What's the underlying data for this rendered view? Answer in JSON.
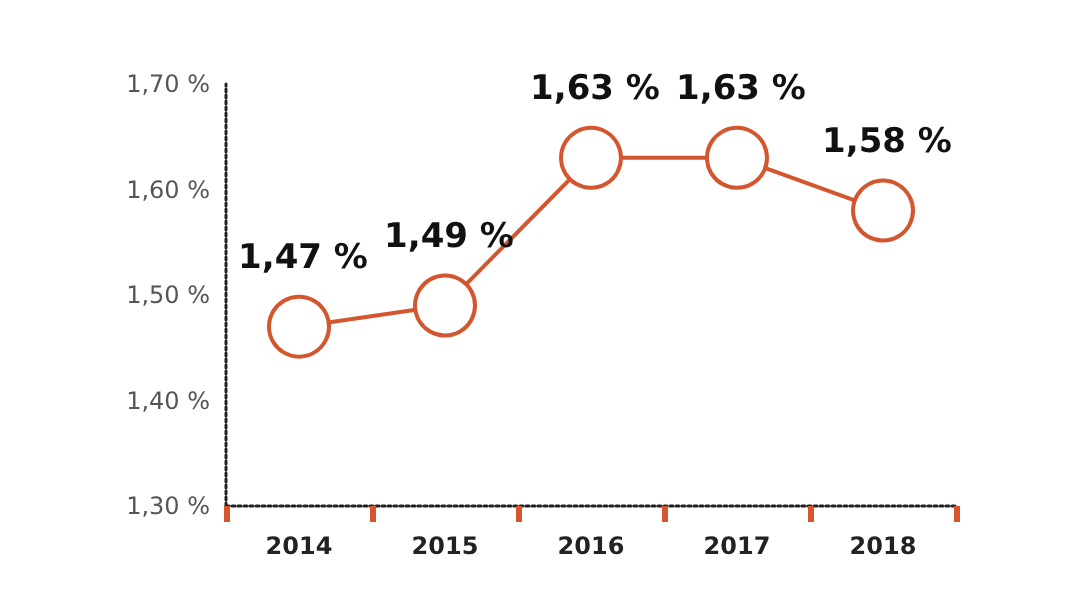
{
  "chart_data": {
    "type": "line",
    "categories": [
      "2014",
      "2015",
      "2016",
      "2017",
      "2018"
    ],
    "series": [
      {
        "color": "#d4562e",
        "values": [
          1.47,
          1.49,
          1.63,
          1.63,
          1.58
        ],
        "value_labels": [
          "1,47 %",
          "1,49 %",
          "1,63 %",
          "1,63 %",
          "1,58 %"
        ]
      }
    ],
    "ylim": [
      1.3,
      1.7
    ],
    "yticks": [
      {
        "value": 1.3,
        "label": "1,30 %"
      },
      {
        "value": 1.4,
        "label": "1,40 %"
      },
      {
        "value": 1.5,
        "label": "1,50 %"
      },
      {
        "value": 1.6,
        "label": "1,60 %"
      },
      {
        "value": 1.7,
        "label": "1,70 %"
      }
    ],
    "grid": false,
    "marker": "circle",
    "line_style": "solid"
  }
}
